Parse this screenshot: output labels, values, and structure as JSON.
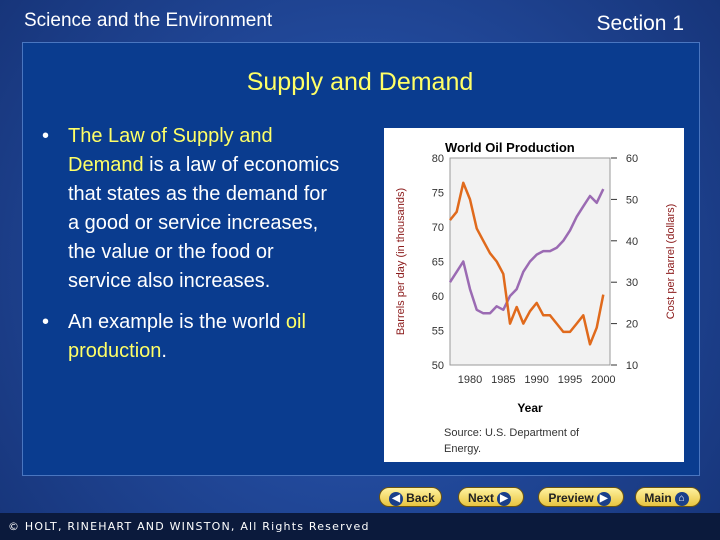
{
  "header": {
    "left": "Science and the Environment",
    "right": "Section 1"
  },
  "slide": {
    "title": "Supply and Demand",
    "bullet1": {
      "pre": "",
      "highlight": "The Law of Supply and Demand",
      "post": " is a law of economics that states as the demand for a good or service increases, the value or the food or service also increases."
    },
    "bullet2": {
      "pre": "An example is the world ",
      "highlight": "oil production",
      "post": "."
    }
  },
  "nav": {
    "back": "Back",
    "next": "Next",
    "preview": "Preview",
    "main": "Main"
  },
  "footer": "© HOLT, RINEHART AND WINSTON, All Rights Reserved",
  "colors": {
    "production": "#9b6bb3",
    "price": "#e06a1c",
    "accent": "#ffff66"
  },
  "chart_data": {
    "type": "line",
    "title": "World Oil Production",
    "xlabel": "Year",
    "ylabel": "Barrels per day (in thousands)",
    "y2label": "Cost per barrel (dollars)",
    "source": "Source: U.S. Department of Energy.",
    "xlim": [
      1977,
      2001
    ],
    "ylim": [
      50,
      80
    ],
    "y2lim": [
      10,
      60
    ],
    "xticks": [
      "1980",
      "1985",
      "1990",
      "1995",
      "2000"
    ],
    "yticks": [
      "50",
      "55",
      "60",
      "65",
      "70",
      "75",
      "80"
    ],
    "y2ticks": [
      "10",
      "20",
      "30",
      "40",
      "50",
      "60"
    ],
    "series": [
      {
        "name": "production",
        "axis": "left",
        "x": [
          1977,
          1978,
          1979,
          1980,
          1981,
          1982,
          1983,
          1984,
          1985,
          1986,
          1987,
          1988,
          1989,
          1990,
          1991,
          1992,
          1993,
          1994,
          1995,
          1996,
          1997,
          1998,
          1999,
          2000
        ],
        "y": [
          62.0,
          63.5,
          65.0,
          61.0,
          58.0,
          57.5,
          57.5,
          58.5,
          58.0,
          60.0,
          61.0,
          63.5,
          65.0,
          66.0,
          66.5,
          66.5,
          67.0,
          68.0,
          69.5,
          71.5,
          73.0,
          74.5,
          73.5,
          75.5
        ]
      },
      {
        "name": "price",
        "axis": "right",
        "x": [
          1977,
          1978,
          1979,
          1980,
          1981,
          1982,
          1983,
          1984,
          1985,
          1986,
          1987,
          1988,
          1989,
          1990,
          1991,
          1992,
          1993,
          1994,
          1995,
          1996,
          1997,
          1998,
          1999,
          2000
        ],
        "y": [
          45,
          47,
          54,
          50,
          43,
          40,
          37,
          35,
          32,
          20,
          24,
          20,
          23,
          25,
          22,
          22,
          20,
          18,
          18,
          20,
          22,
          15,
          19,
          27
        ]
      }
    ]
  }
}
